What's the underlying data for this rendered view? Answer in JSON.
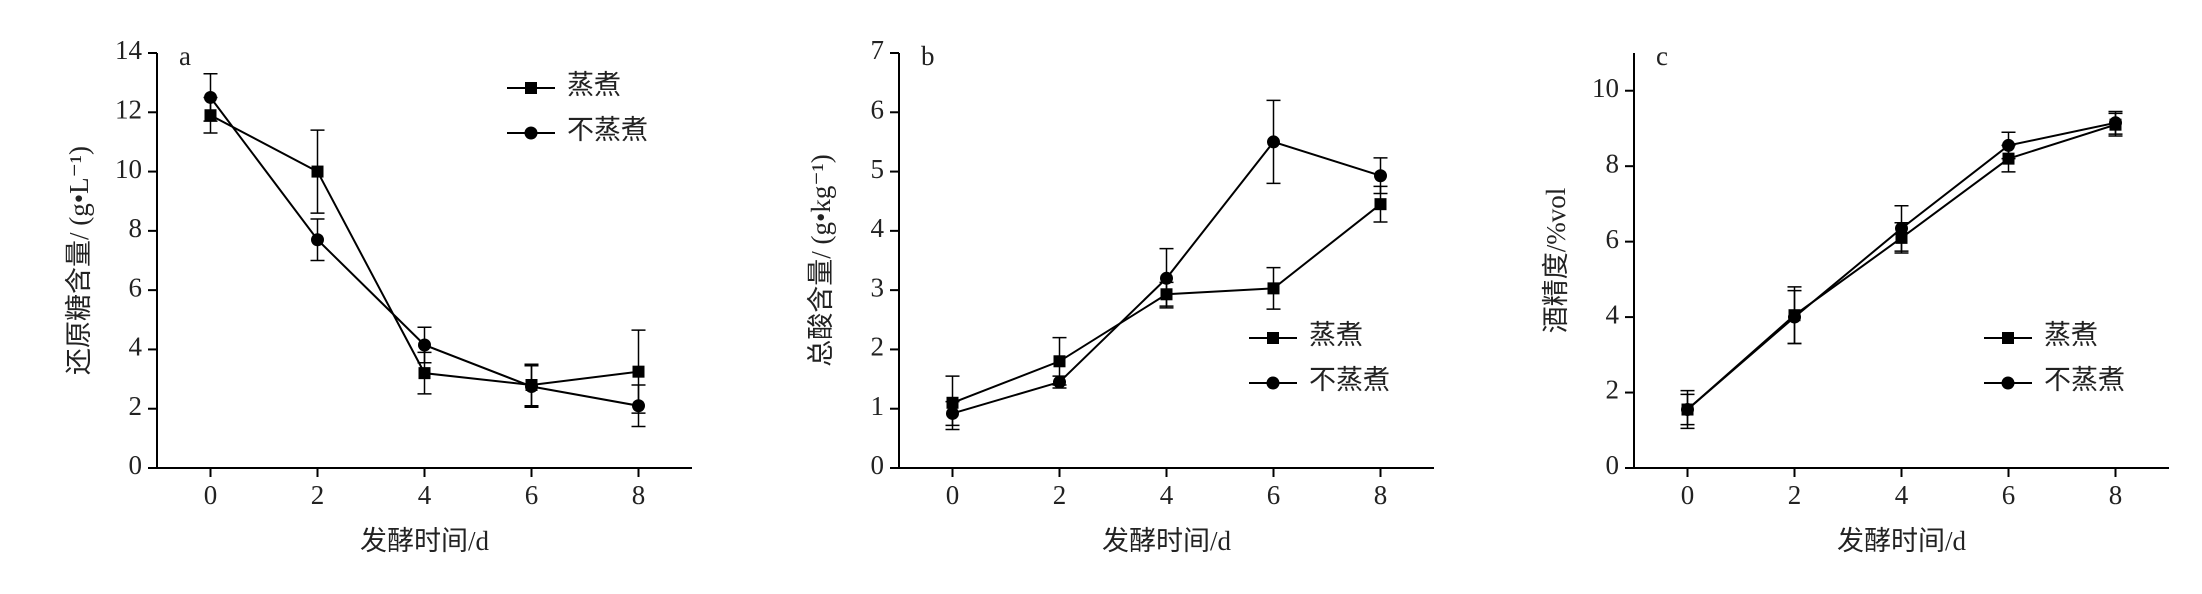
{
  "chart_data": [
    {
      "type": "line",
      "panel_label": "a",
      "x_label": "发酵时间/d",
      "y_label": "还原糖含量/ (g•L⁻¹)",
      "x": [
        0,
        2,
        4,
        6,
        8
      ],
      "xlim": [
        -1,
        9
      ],
      "xticks": [
        0,
        2,
        4,
        6,
        8
      ],
      "ylim": [
        0,
        14
      ],
      "yticks": [
        0,
        2,
        4,
        6,
        8,
        10,
        12,
        14
      ],
      "legend": "upper-right",
      "series": [
        {
          "name": "蒸煮",
          "color": "#000000",
          "marker": "square",
          "values": [
            11.9,
            10.0,
            3.2,
            2.8,
            3.25
          ],
          "errors": [
            0.6,
            1.4,
            0.7,
            0.7,
            1.4
          ]
        },
        {
          "name": "不蒸煮",
          "color": "#000000",
          "marker": "circle",
          "values": [
            12.5,
            7.7,
            4.15,
            2.75,
            2.1
          ],
          "errors": [
            0.8,
            0.7,
            0.6,
            0.7,
            0.7
          ]
        }
      ]
    },
    {
      "type": "line",
      "panel_label": "b",
      "x_label": "发酵时间/d",
      "y_label": "总酸含量/ (g•kg⁻¹)",
      "x": [
        0,
        2,
        4,
        6,
        8
      ],
      "xlim": [
        -1,
        9
      ],
      "xticks": [
        0,
        2,
        4,
        6,
        8
      ],
      "ylim": [
        0,
        7
      ],
      "yticks": [
        0,
        1,
        2,
        3,
        4,
        5,
        6,
        7
      ],
      "legend": "lower-right",
      "series": [
        {
          "name": "蒸煮",
          "color": "#000000",
          "marker": "square",
          "values": [
            1.1,
            1.8,
            2.93,
            3.03,
            4.45
          ],
          "errors": [
            0.45,
            0.4,
            0.2,
            0.35,
            0.3
          ]
        },
        {
          "name": "不蒸煮",
          "color": "#000000",
          "marker": "circle",
          "values": [
            0.92,
            1.45,
            3.2,
            5.5,
            4.93
          ],
          "errors": [
            0.2,
            0.1,
            0.5,
            0.7,
            0.3
          ]
        }
      ]
    },
    {
      "type": "line",
      "panel_label": "c",
      "x_label": "发酵时间/d",
      "y_label": "酒精度/%vol",
      "x": [
        0,
        2,
        4,
        6,
        8
      ],
      "xlim": [
        -1,
        9
      ],
      "xticks": [
        0,
        2,
        4,
        6,
        8
      ],
      "ylim": [
        0,
        11
      ],
      "yticks": [
        0,
        2,
        4,
        6,
        8,
        10
      ],
      "legend": "lower-right",
      "series": [
        {
          "name": "蒸煮",
          "color": "#000000",
          "marker": "square",
          "values": [
            1.55,
            4.05,
            6.1,
            8.2,
            9.1
          ],
          "errors": [
            0.4,
            0.75,
            0.4,
            0.35,
            0.3
          ]
        },
        {
          "name": "不蒸煮",
          "color": "#000000",
          "marker": "circle",
          "values": [
            1.55,
            4.0,
            6.35,
            8.55,
            9.15
          ],
          "errors": [
            0.5,
            0.7,
            0.6,
            0.35,
            0.3
          ]
        }
      ]
    }
  ]
}
